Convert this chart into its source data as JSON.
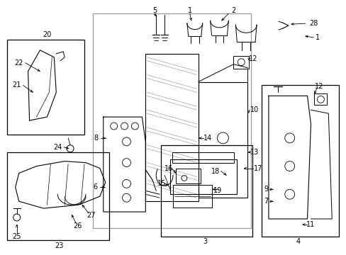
{
  "bg_color": "#ffffff",
  "lc": "#000000",
  "fig_width": 4.89,
  "fig_height": 3.6,
  "dpi": 100
}
